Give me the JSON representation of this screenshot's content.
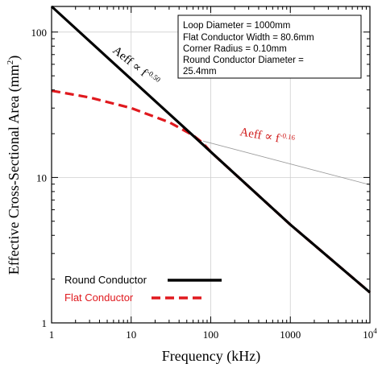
{
  "chart_data": {
    "type": "line",
    "xlabel": "Frequency (kHz)",
    "ylabel": "Effective Cross-Sectional Area (mm",
    "ylabel_sup": "2",
    "ylabel_close": ")",
    "x_scale": "log",
    "y_scale": "log",
    "xlim": [
      1,
      10000
    ],
    "ylim": [
      1,
      150
    ],
    "x_ticks": [
      {
        "value": 1,
        "label": "1"
      },
      {
        "value": 10,
        "label": "10"
      },
      {
        "value": 100,
        "label": "100"
      },
      {
        "value": 1000,
        "label": "1000"
      },
      {
        "value": 10000,
        "label": "10",
        "sup": "4"
      }
    ],
    "y_ticks": [
      {
        "value": 1,
        "label": "1"
      },
      {
        "value": 10,
        "label": "10"
      },
      {
        "value": 100,
        "label": "100"
      }
    ],
    "grid": true,
    "series": [
      {
        "name": "Round Conductor",
        "color": "#000000",
        "style": "solid",
        "points": [
          [
            1,
            150
          ],
          [
            10,
            47.4
          ],
          [
            80,
            16.8
          ],
          [
            100,
            15.0
          ],
          [
            1000,
            4.74
          ],
          [
            10000,
            1.62
          ]
        ]
      },
      {
        "name": "Flat Conductor",
        "color": "#e0191e",
        "style": "dashed",
        "points": [
          [
            1,
            39.5
          ],
          [
            3,
            35.5
          ],
          [
            10,
            30.0
          ],
          [
            30,
            24.0
          ],
          [
            60,
            19.5
          ],
          [
            80,
            17.2
          ],
          [
            100,
            15.0
          ],
          [
            1000,
            4.74
          ],
          [
            10000,
            1.62
          ]
        ]
      }
    ],
    "reference_line": {
      "color": "#999999",
      "points": [
        [
          80,
          17.8
        ],
        [
          10000,
          8.9
        ]
      ]
    },
    "annotations": [
      {
        "text": "Aeff ∝ f",
        "sup": "-0.50",
        "color": "#000000"
      },
      {
        "text": "Aeff ∝ f",
        "sup": "-0.16",
        "color": "#d01c1c"
      }
    ],
    "info_box": [
      "Loop Diameter = 1000mm",
      "Flat Conductor Width = 80.6mm",
      "Corner Radius = 0.10mm",
      "Round Conductor Diameter =",
      "25.4mm"
    ],
    "legend_position": "bottom-left"
  }
}
